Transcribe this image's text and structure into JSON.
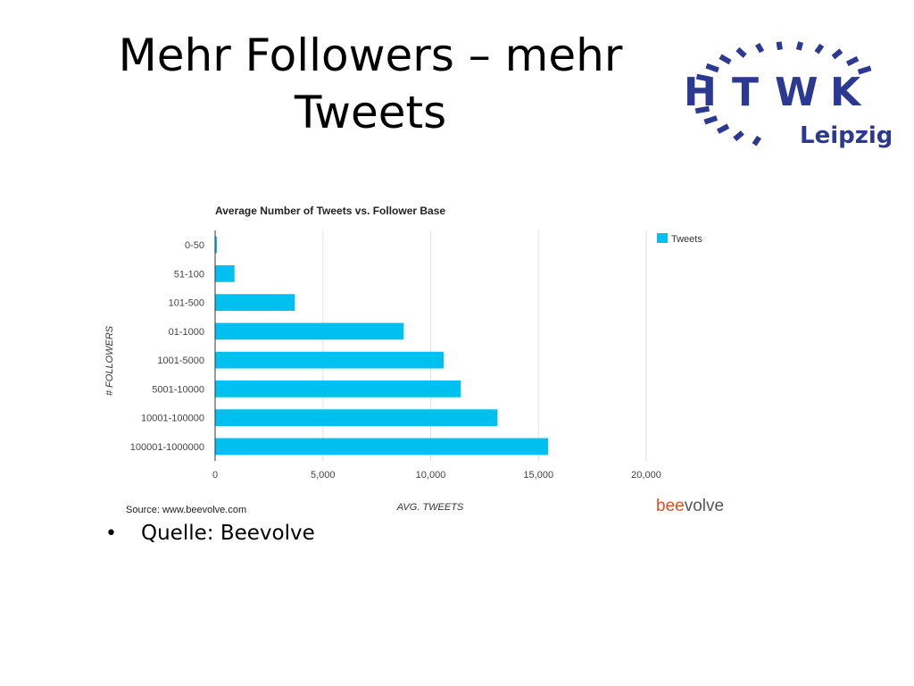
{
  "slide": {
    "title_line1": "Mehr Followers – mehr",
    "title_line2": "Tweets",
    "bullets": [
      "Quelle: Beevolve"
    ]
  },
  "logo": {
    "letters": [
      "H",
      "T",
      "W",
      "K"
    ],
    "city": "Leipzig",
    "color": "#2b3990"
  },
  "chart_data": {
    "type": "bar",
    "orientation": "horizontal",
    "title": "Average Number of Tweets vs. Follower Base",
    "xlabel": "AVG. TWEETS",
    "ylabel": "# FOLLOWERS",
    "categories": [
      "0-50",
      "51-100",
      "101-500",
      "01-1000",
      "1001-5000",
      "5001-10000",
      "10001-100000",
      "100001-1000000"
    ],
    "series": [
      {
        "name": "Tweets",
        "values": [
          50,
          900,
          3700,
          8750,
          10600,
          11400,
          13100,
          15450
        ],
        "color": "#00c0f0"
      }
    ],
    "xlim": [
      0,
      20000
    ],
    "xticks": [
      0,
      5000,
      10000,
      15000,
      20000
    ],
    "xtick_labels": [
      "0",
      "5,000",
      "10,000",
      "15,000",
      "20,000"
    ],
    "grid": true,
    "legend_position": "top-right",
    "source": "Source: www.beevolve.com",
    "brand": {
      "part1": "bee",
      "part2": "volve",
      "color1": "#d4542a",
      "color2": "#555555"
    }
  }
}
